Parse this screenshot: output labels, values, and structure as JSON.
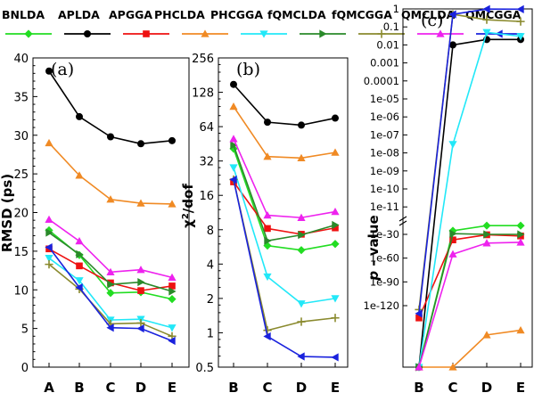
{
  "chart_data": {
    "type": "line",
    "legend": {
      "placement": "top",
      "series": [
        {
          "name": "BNLDA",
          "color": "#22dd22",
          "marker": "diamond"
        },
        {
          "name": "APLDA",
          "color": "#000000",
          "marker": "circle"
        },
        {
          "name": "APGGA",
          "color": "#ee1111",
          "marker": "square"
        },
        {
          "name": "PHCLDA",
          "color": "#f08a24",
          "marker": "triangle-up"
        },
        {
          "name": "PHCGGA",
          "color": "#22e8f8",
          "marker": "triangle-down"
        },
        {
          "name": "fQMCLDA",
          "color": "#2a8a2a",
          "marker": "triangle-right"
        },
        {
          "name": "fQMCGGA",
          "color": "#8a8a2e",
          "marker": "plus"
        },
        {
          "name": "QMCLDA",
          "color": "#ee22ee",
          "marker": "triangle-up"
        },
        {
          "name": "QMCGGA",
          "color": "#1a22dd",
          "marker": "triangle-left"
        }
      ]
    },
    "panels": [
      {
        "label": "(a)",
        "ylabel": "RMSD (ps)",
        "scale": "linear",
        "ylim": [
          0,
          40
        ],
        "yticks": [
          "0",
          "5",
          "10",
          "15",
          "20",
          "25",
          "30",
          "35",
          "40"
        ],
        "categories": [
          "A",
          "B",
          "C",
          "D",
          "E"
        ],
        "grid": false,
        "series": [
          {
            "name": "BNLDA",
            "values": [
              17.7,
              14.5,
              9.6,
              9.7,
              8.8
            ]
          },
          {
            "name": "APLDA",
            "values": [
              38.3,
              32.4,
              29.8,
              28.9,
              29.3
            ]
          },
          {
            "name": "APGGA",
            "values": [
              15.3,
              13.1,
              10.9,
              9.9,
              10.5
            ]
          },
          {
            "name": "PHCLDA",
            "values": [
              29.0,
              24.8,
              21.7,
              21.2,
              21.1
            ]
          },
          {
            "name": "PHCGGA",
            "values": [
              14.1,
              11.2,
              6.1,
              6.2,
              5.1
            ]
          },
          {
            "name": "fQMCLDA",
            "values": [
              17.4,
              14.6,
              10.7,
              11.0,
              9.8
            ]
          },
          {
            "name": "fQMCGGA",
            "values": [
              13.3,
              10.1,
              5.6,
              5.7,
              4.0
            ]
          },
          {
            "name": "QMCLDA",
            "values": [
              19.1,
              16.3,
              12.3,
              12.6,
              11.6
            ]
          },
          {
            "name": "QMCGGA",
            "values": [
              15.5,
              10.3,
              5.1,
              5.0,
              3.4
            ]
          }
        ]
      },
      {
        "label": "(b)",
        "ylabel": "χ²/dof",
        "scale": "log2",
        "ylim": [
          0.5,
          256
        ],
        "yticks": [
          "0.5",
          "1",
          "2",
          "4",
          "8",
          "16",
          "32",
          "64",
          "128",
          "256"
        ],
        "categories": [
          "B",
          "C",
          "D",
          "E"
        ],
        "grid": false,
        "series": [
          {
            "name": "BNLDA",
            "values": [
              41,
              5.8,
              5.3,
              6.0
            ]
          },
          {
            "name": "APLDA",
            "values": [
              150,
              70,
              66,
              76
            ]
          },
          {
            "name": "APGGA",
            "values": [
              21,
              8.2,
              7.3,
              8.3
            ]
          },
          {
            "name": "PHCLDA",
            "values": [
              96,
              35,
              34,
              38
            ]
          },
          {
            "name": "PHCGGA",
            "values": [
              28,
              3.1,
              1.8,
              2.0
            ]
          },
          {
            "name": "fQMCLDA",
            "values": [
              44,
              6.4,
              7.2,
              8.8
            ]
          },
          {
            "name": "fQMCGGA",
            "values": [
              22,
              1.05,
              1.25,
              1.35
            ]
          },
          {
            "name": "QMCLDA",
            "values": [
              50,
              10.7,
              10.2,
              11.5
            ]
          },
          {
            "name": "QMCGGA",
            "values": [
              22,
              0.93,
              0.62,
              0.61
            ]
          }
        ]
      },
      {
        "label": "(c)",
        "ylabel": "p - value",
        "scale": "log (broken axis)",
        "yticks": [
          "1",
          "0.1",
          "0.01",
          "0.001",
          "0.0001",
          "1e-05",
          "1e-06",
          "1e-07",
          "1e-08",
          "1e-09",
          "1e-10",
          "1e-11",
          "1e-30",
          "1e-60",
          "1e-90",
          "1e-120"
        ],
        "categories": [
          "B",
          "C",
          "D",
          "E"
        ],
        "grid": false,
        "series": [
          {
            "name": "BNLDA",
            "values": [
              0,
              3e-28,
              1e-24,
              1e-24
            ]
          },
          {
            "name": "APLDA",
            "values": [
              0,
              0.01,
              0.02,
              0.02
            ]
          },
          {
            "name": "APGGA",
            "values": [
              3e-136,
              1e-37,
              3e-31,
              1e-32
            ]
          },
          {
            "name": "PHCLDA",
            "values": [
              0,
              0,
              1e-157,
              1e-151
            ]
          },
          {
            "name": "PHCGGA",
            "values": [
              0,
              3e-08,
              0.05,
              0.03
            ]
          },
          {
            "name": "fQMCLDA",
            "values": [
              0,
              3e-30,
              1e-30,
              1e-30
            ]
          },
          {
            "name": "fQMCGGA",
            "values": [
              1e-125,
              0.5,
              0.25,
              0.2
            ]
          },
          {
            "name": "QMCLDA",
            "values": [
              0,
              1e-55,
              1e-41,
              1e-40
            ]
          },
          {
            "name": "QMCGGA",
            "values": [
              1e-130,
              0.5,
              0.98,
              0.96
            ]
          }
        ]
      }
    ]
  }
}
